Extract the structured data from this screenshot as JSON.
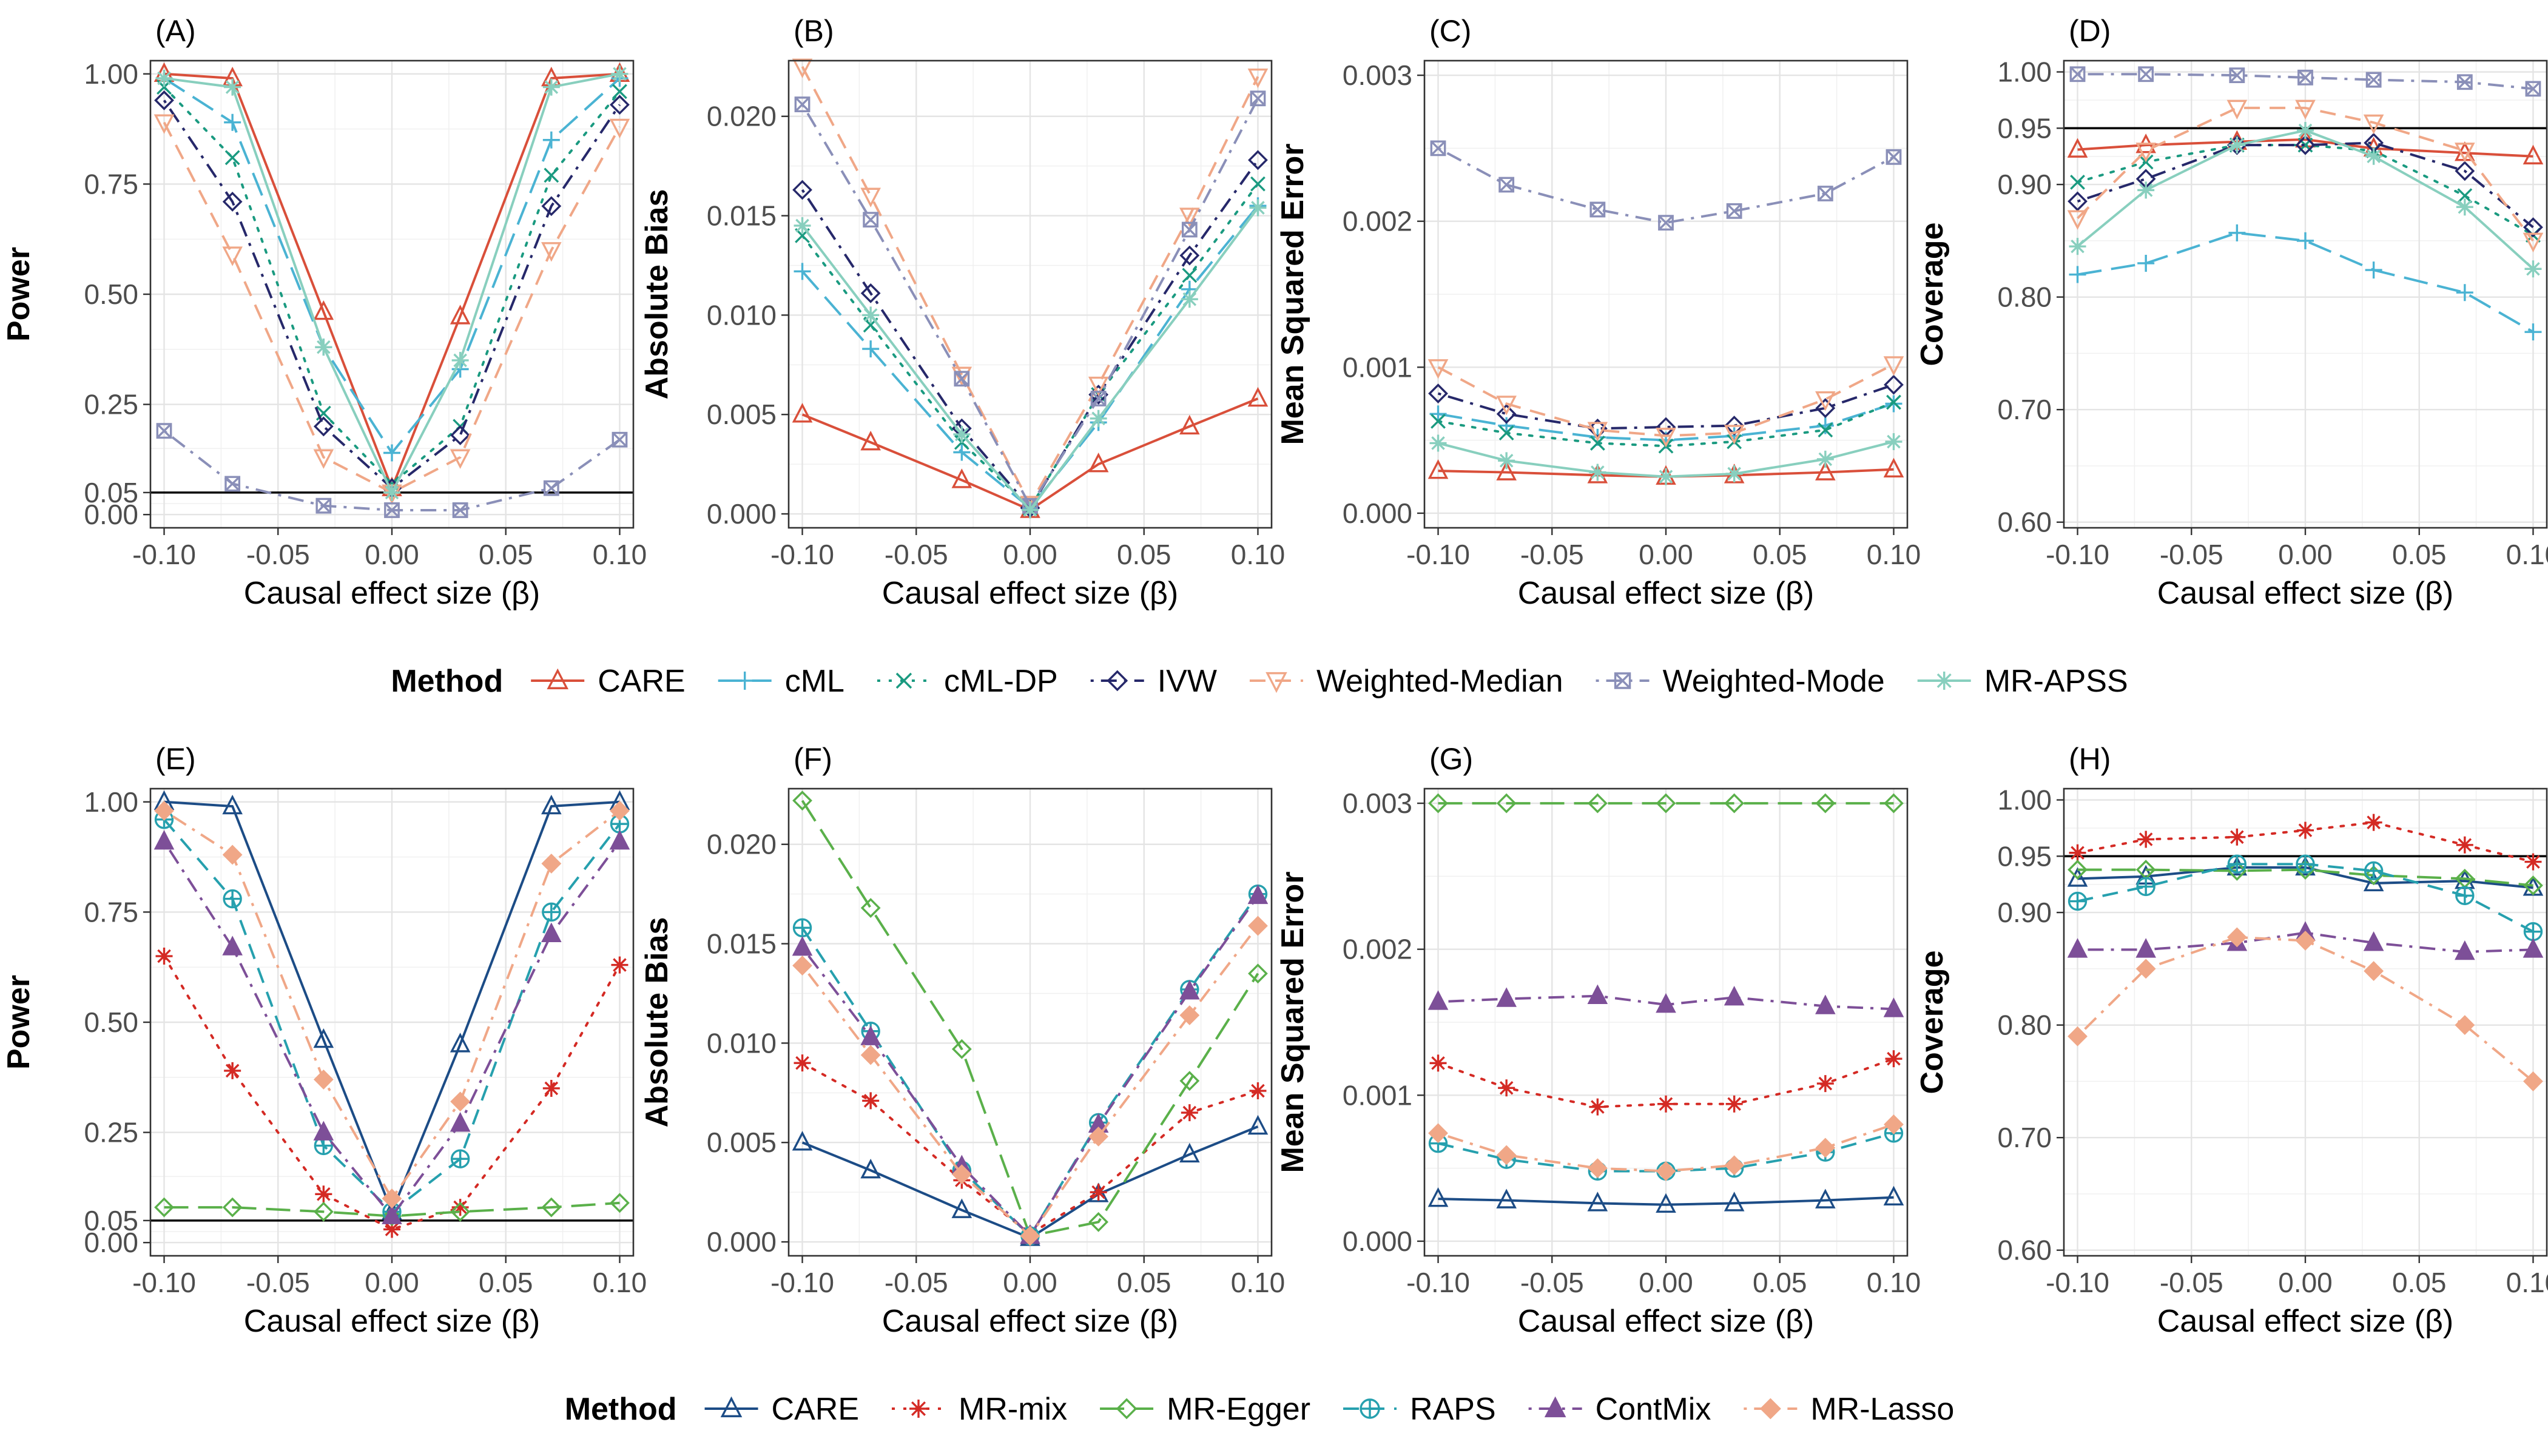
{
  "figure": {
    "xlabel": "Causal effect size (β)",
    "x": [
      -0.1,
      -0.07,
      -0.03,
      0.0,
      0.03,
      0.07,
      0.1
    ],
    "x_ticks": [
      -0.1,
      -0.05,
      0.0,
      0.05,
      0.1
    ],
    "x_tick_labels": [
      "-0.10",
      "-0.05",
      "0.00",
      "0.05",
      "0.10"
    ]
  },
  "legends": [
    {
      "title": "Method",
      "entries": [
        {
          "name": "CARE",
          "color": "#d94f3a",
          "marker": "triangle-up-open",
          "dash": "solid"
        },
        {
          "name": "cML",
          "color": "#4ab3d3",
          "marker": "plus",
          "dash": "longdash"
        },
        {
          "name": "cML-DP",
          "color": "#1a9a80",
          "marker": "cross",
          "dash": "dotted"
        },
        {
          "name": "IVW",
          "color": "#26286a",
          "marker": "diamond-open",
          "dash": "dotdash"
        },
        {
          "name": "Weighted-Median",
          "color": "#f0a787",
          "marker": "triangle-down-open",
          "dash": "dashed"
        },
        {
          "name": "Weighted-Mode",
          "color": "#8a8fb8",
          "marker": "square-x",
          "dash": "dotdash"
        },
        {
          "name": "MR-APSS",
          "color": "#88cfbe",
          "marker": "asterisk",
          "dash": "solid"
        }
      ]
    },
    {
      "title": "Method",
      "entries": [
        {
          "name": "CARE",
          "color": "#1c4c86",
          "marker": "triangle-up-open",
          "dash": "solid"
        },
        {
          "name": "MR-mix",
          "color": "#d42a24",
          "marker": "asterisk",
          "dash": "dotted"
        },
        {
          "name": "MR-Egger",
          "color": "#5ab04a",
          "marker": "diamond-open",
          "dash": "longdash"
        },
        {
          "name": "RAPS",
          "color": "#26a0ae",
          "marker": "circle-plus",
          "dash": "dashed"
        },
        {
          "name": "ContMix",
          "color": "#7d4f98",
          "marker": "triangle-up-filled",
          "dash": "dotdash"
        },
        {
          "name": "MR-Lasso",
          "color": "#f0a787",
          "marker": "diamond-filled",
          "dash": "dotdash"
        }
      ]
    }
  ],
  "chart_data": [
    {
      "panel": "(A)",
      "type": "line",
      "ylabel": "Power",
      "ylim": [
        -0.03,
        1.03
      ],
      "y_ticks": [
        0,
        0.05,
        0.25,
        0.5,
        0.75,
        1.0
      ],
      "y_tick_labels": [
        "0.00",
        "0.05",
        "0.25",
        "0.50",
        "0.75",
        "1.00"
      ],
      "hline": 0.05,
      "legend": 0,
      "series": [
        {
          "name": "CARE",
          "values": [
            1.0,
            0.99,
            0.46,
            0.06,
            0.45,
            0.99,
            1.0
          ]
        },
        {
          "name": "cML",
          "values": [
            0.99,
            0.89,
            0.38,
            0.14,
            0.33,
            0.85,
            0.99
          ]
        },
        {
          "name": "cML-DP",
          "values": [
            0.97,
            0.81,
            0.23,
            0.07,
            0.2,
            0.77,
            0.96
          ]
        },
        {
          "name": "IVW",
          "values": [
            0.94,
            0.71,
            0.2,
            0.06,
            0.18,
            0.7,
            0.93
          ]
        },
        {
          "name": "Weighted-Median",
          "values": [
            0.89,
            0.59,
            0.13,
            0.05,
            0.13,
            0.6,
            0.88
          ]
        },
        {
          "name": "Weighted-Mode",
          "values": [
            0.19,
            0.07,
            0.02,
            0.01,
            0.01,
            0.06,
            0.17
          ]
        },
        {
          "name": "MR-APSS",
          "values": [
            0.99,
            0.97,
            0.38,
            0.05,
            0.35,
            0.97,
            1.0
          ]
        }
      ]
    },
    {
      "panel": "(B)",
      "type": "line",
      "ylabel": "Absolute Bias",
      "ylim": [
        -0.0007,
        0.0228
      ],
      "y_ticks": [
        0,
        0.005,
        0.01,
        0.015,
        0.02
      ],
      "y_tick_labels": [
        "0.000",
        "0.005",
        "0.010",
        "0.015",
        "0.020"
      ],
      "legend": 0,
      "series": [
        {
          "name": "CARE",
          "values": [
            0.005,
            0.0036,
            0.0017,
            0.0002,
            0.0025,
            0.0044,
            0.0058
          ]
        },
        {
          "name": "cML",
          "values": [
            0.0122,
            0.0083,
            0.0031,
            0.0003,
            0.0046,
            0.0113,
            0.0155
          ]
        },
        {
          "name": "cML-DP",
          "values": [
            0.014,
            0.0095,
            0.0036,
            0.0003,
            0.006,
            0.012,
            0.0166
          ]
        },
        {
          "name": "IVW",
          "values": [
            0.0163,
            0.0111,
            0.0043,
            0.0003,
            0.006,
            0.013,
            0.0178
          ]
        },
        {
          "name": "Weighted-Median",
          "values": [
            0.0225,
            0.016,
            0.007,
            0.0005,
            0.0065,
            0.015,
            0.022
          ]
        },
        {
          "name": "Weighted-Mode",
          "values": [
            0.0206,
            0.0148,
            0.0068,
            0.0004,
            0.0058,
            0.0143,
            0.0209
          ]
        },
        {
          "name": "MR-APSS",
          "values": [
            0.0145,
            0.01,
            0.004,
            0.0002,
            0.0048,
            0.0108,
            0.0154
          ]
        }
      ]
    },
    {
      "panel": "(C)",
      "type": "line",
      "ylabel": "Mean Squared Error",
      "ylim": [
        -0.0001,
        0.0031
      ],
      "y_ticks": [
        0,
        0.001,
        0.002,
        0.003
      ],
      "y_tick_labels": [
        "0.000",
        "0.001",
        "0.002",
        "0.003"
      ],
      "legend": 0,
      "series": [
        {
          "name": "CARE",
          "values": [
            0.00029,
            0.00028,
            0.00026,
            0.00025,
            0.00026,
            0.00028,
            0.0003
          ]
        },
        {
          "name": "cML",
          "values": [
            0.00068,
            0.0006,
            0.00052,
            0.0005,
            0.00053,
            0.0006,
            0.00075
          ]
        },
        {
          "name": "cML-DP",
          "values": [
            0.00063,
            0.00055,
            0.00048,
            0.00046,
            0.00049,
            0.00057,
            0.00076
          ]
        },
        {
          "name": "IVW",
          "values": [
            0.00082,
            0.00068,
            0.00058,
            0.00059,
            0.0006,
            0.00072,
            0.00088
          ]
        },
        {
          "name": "Weighted-Median",
          "values": [
            0.001,
            0.00075,
            0.00057,
            0.00053,
            0.00055,
            0.00078,
            0.00102
          ]
        },
        {
          "name": "Weighted-Mode",
          "values": [
            0.0025,
            0.00225,
            0.00208,
            0.00199,
            0.00207,
            0.00219,
            0.00244
          ]
        },
        {
          "name": "MR-APSS",
          "values": [
            0.00048,
            0.00036,
            0.00028,
            0.00025,
            0.00027,
            0.00037,
            0.00049
          ]
        }
      ]
    },
    {
      "panel": "(D)",
      "type": "line",
      "ylabel": "Coverage",
      "ylim": [
        0.595,
        1.01
      ],
      "y_ticks": [
        0.6,
        0.7,
        0.8,
        0.9,
        0.95,
        1.0
      ],
      "y_tick_labels": [
        "0.60",
        "0.70",
        "0.80",
        "0.90",
        "0.95",
        "1.00"
      ],
      "hline": 0.95,
      "legend": 0,
      "series": [
        {
          "name": "CARE",
          "values": [
            0.931,
            0.935,
            0.938,
            0.94,
            0.932,
            0.928,
            0.925
          ]
        },
        {
          "name": "cML",
          "values": [
            0.82,
            0.83,
            0.857,
            0.85,
            0.824,
            0.804,
            0.769
          ]
        },
        {
          "name": "cML-DP",
          "values": [
            0.902,
            0.92,
            0.935,
            0.935,
            0.93,
            0.89,
            0.855
          ]
        },
        {
          "name": "IVW",
          "values": [
            0.885,
            0.905,
            0.935,
            0.935,
            0.937,
            0.912,
            0.862
          ]
        },
        {
          "name": "Weighted-Median",
          "values": [
            0.87,
            0.93,
            0.968,
            0.968,
            0.955,
            0.93,
            0.85
          ]
        },
        {
          "name": "Weighted-Mode",
          "values": [
            0.998,
            0.998,
            0.997,
            0.995,
            0.993,
            0.991,
            0.985
          ]
        },
        {
          "name": "MR-APSS",
          "values": [
            0.845,
            0.895,
            0.935,
            0.948,
            0.925,
            0.88,
            0.825
          ]
        }
      ]
    },
    {
      "panel": "(E)",
      "type": "line",
      "ylabel": "Power",
      "ylim": [
        -0.03,
        1.03
      ],
      "y_ticks": [
        0,
        0.05,
        0.25,
        0.5,
        0.75,
        1.0
      ],
      "y_tick_labels": [
        "0.00",
        "0.05",
        "0.25",
        "0.50",
        "0.75",
        "1.00"
      ],
      "hline": 0.05,
      "legend": 1,
      "series": [
        {
          "name": "CARE",
          "values": [
            1.0,
            0.99,
            0.46,
            0.07,
            0.45,
            0.99,
            1.0
          ]
        },
        {
          "name": "MR-mix",
          "values": [
            0.65,
            0.39,
            0.11,
            0.03,
            0.08,
            0.35,
            0.63
          ]
        },
        {
          "name": "MR-Egger",
          "values": [
            0.08,
            0.08,
            0.07,
            0.06,
            0.07,
            0.08,
            0.09
          ]
        },
        {
          "name": "RAPS",
          "values": [
            0.96,
            0.78,
            0.22,
            0.07,
            0.19,
            0.75,
            0.95
          ]
        },
        {
          "name": "ContMix",
          "values": [
            0.91,
            0.67,
            0.25,
            0.06,
            0.27,
            0.7,
            0.91
          ]
        },
        {
          "name": "MR-Lasso",
          "values": [
            0.98,
            0.88,
            0.37,
            0.1,
            0.32,
            0.86,
            0.98
          ]
        }
      ]
    },
    {
      "panel": "(F)",
      "type": "line",
      "ylabel": "Absolute Bias",
      "ylim": [
        -0.0007,
        0.0228
      ],
      "y_ticks": [
        0,
        0.005,
        0.01,
        0.015,
        0.02
      ],
      "y_tick_labels": [
        "0.000",
        "0.005",
        "0.010",
        "0.015",
        "0.020"
      ],
      "legend": 1,
      "series": [
        {
          "name": "CARE",
          "values": [
            0.005,
            0.0036,
            0.0016,
            0.0002,
            0.0024,
            0.0044,
            0.0058
          ]
        },
        {
          "name": "MR-mix",
          "values": [
            0.009,
            0.0071,
            0.0031,
            0.0004,
            0.0025,
            0.0065,
            0.0076
          ]
        },
        {
          "name": "MR-Egger",
          "values": [
            0.0222,
            0.0168,
            0.0097,
            0.0003,
            0.001,
            0.0081,
            0.0135
          ]
        },
        {
          "name": "RAPS",
          "values": [
            0.0158,
            0.0106,
            0.0036,
            0.0003,
            0.006,
            0.0127,
            0.0175
          ]
        },
        {
          "name": "ContMix",
          "values": [
            0.0148,
            0.0103,
            0.0038,
            0.0003,
            0.0059,
            0.0126,
            0.0174
          ]
        },
        {
          "name": "MR-Lasso",
          "values": [
            0.0139,
            0.0094,
            0.0034,
            0.0003,
            0.0053,
            0.0114,
            0.0159
          ]
        }
      ]
    },
    {
      "panel": "(G)",
      "type": "line",
      "ylabel": "Mean Squared Error",
      "ylim": [
        -0.0001,
        0.0031
      ],
      "y_ticks": [
        0,
        0.001,
        0.002,
        0.003
      ],
      "y_tick_labels": [
        "0.000",
        "0.001",
        "0.002",
        "0.003"
      ],
      "legend": 1,
      "series": [
        {
          "name": "CARE",
          "values": [
            0.00029,
            0.00028,
            0.00026,
            0.00025,
            0.00026,
            0.00028,
            0.0003
          ]
        },
        {
          "name": "MR-mix",
          "values": [
            0.00122,
            0.00105,
            0.00092,
            0.00094,
            0.00094,
            0.00108,
            0.00125
          ]
        },
        {
          "name": "MR-Egger",
          "values": [
            0.003,
            0.003,
            0.003,
            0.003,
            0.003,
            0.003,
            0.003
          ]
        },
        {
          "name": "RAPS",
          "values": [
            0.00067,
            0.00056,
            0.00048,
            0.00048,
            0.0005,
            0.00061,
            0.00074
          ]
        },
        {
          "name": "ContMix",
          "values": [
            0.00164,
            0.00166,
            0.00168,
            0.00162,
            0.00167,
            0.00161,
            0.00159
          ]
        },
        {
          "name": "MR-Lasso",
          "values": [
            0.00074,
            0.00059,
            0.0005,
            0.00048,
            0.00052,
            0.00064,
            0.0008
          ]
        }
      ]
    },
    {
      "panel": "(H)",
      "type": "line",
      "ylabel": "Coverage",
      "ylim": [
        0.595,
        1.01
      ],
      "y_ticks": [
        0.6,
        0.7,
        0.8,
        0.9,
        0.95,
        1.0
      ],
      "y_tick_labels": [
        "0.60",
        "0.70",
        "0.80",
        "0.90",
        "0.95",
        "1.00"
      ],
      "hline": 0.95,
      "legend": 1,
      "series": [
        {
          "name": "CARE",
          "values": [
            0.93,
            0.932,
            0.94,
            0.94,
            0.926,
            0.928,
            0.922
          ]
        },
        {
          "name": "MR-mix",
          "values": [
            0.953,
            0.965,
            0.967,
            0.973,
            0.98,
            0.96,
            0.945
          ]
        },
        {
          "name": "MR-Egger",
          "values": [
            0.938,
            0.938,
            0.937,
            0.938,
            0.933,
            0.93,
            0.924
          ]
        },
        {
          "name": "RAPS",
          "values": [
            0.91,
            0.923,
            0.943,
            0.943,
            0.937,
            0.915,
            0.883
          ]
        },
        {
          "name": "ContMix",
          "values": [
            0.867,
            0.867,
            0.873,
            0.882,
            0.873,
            0.865,
            0.867
          ]
        },
        {
          "name": "MR-Lasso",
          "values": [
            0.79,
            0.85,
            0.878,
            0.875,
            0.848,
            0.8,
            0.75
          ]
        }
      ]
    }
  ]
}
